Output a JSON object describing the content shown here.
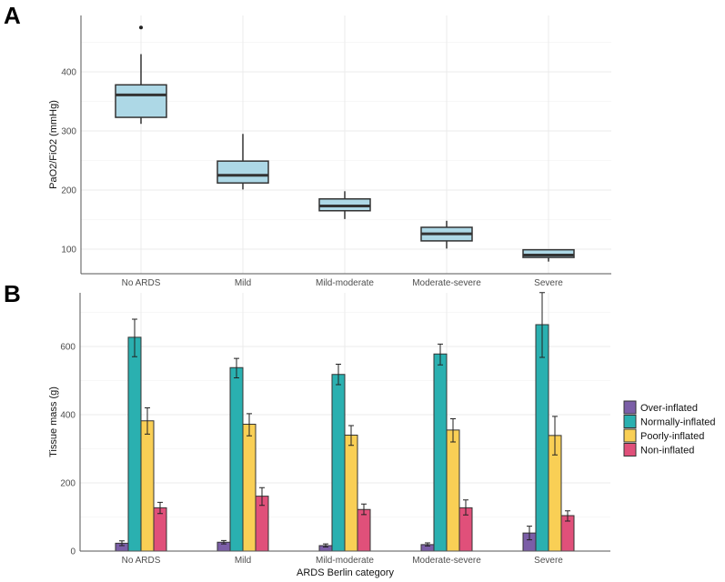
{
  "chart_data": [
    {
      "panel_label": "A",
      "type": "box",
      "categories": [
        "No ARDS",
        "Mild",
        "Mild-moderate",
        "Moderate-severe",
        "Severe"
      ],
      "xlabel": "",
      "ylabel": "PaO2/FiO2 (mmHg)",
      "ylim": [
        62,
        494
      ],
      "yticks": [
        100,
        200,
        300,
        400
      ],
      "grid": true,
      "fill_color": "#add8e6",
      "boxes": [
        {
          "whisker_low": 312,
          "q1": 323,
          "median": 361,
          "q3": 378,
          "whisker_high": 430,
          "outliers": [
            475
          ]
        },
        {
          "whisker_low": 201,
          "q1": 212,
          "median": 225,
          "q3": 249,
          "whisker_high": 295,
          "outliers": []
        },
        {
          "whisker_low": 151,
          "q1": 165,
          "median": 173,
          "q3": 185,
          "whisker_high": 198,
          "outliers": []
        },
        {
          "whisker_low": 101,
          "q1": 114,
          "median": 126,
          "q3": 137,
          "whisker_high": 148,
          "outliers": []
        },
        {
          "whisker_low": 79,
          "q1": 86,
          "median": 90,
          "q3": 99,
          "whisker_high": 100,
          "outliers": []
        }
      ]
    },
    {
      "panel_label": "B",
      "type": "bar",
      "categories": [
        "No ARDS",
        "Mild",
        "Mild-moderate",
        "Moderate-severe",
        "Severe"
      ],
      "xlabel": "ARDS Berlin category",
      "ylabel": "Tissue mass (g)",
      "ylim": [
        0,
        757
      ],
      "yticks": [
        0,
        200,
        400,
        600
      ],
      "grid": true,
      "legend_placement": "right",
      "series": [
        {
          "name": "Over-inflated",
          "color": "#7b5ea7",
          "values": [
            23,
            26,
            16,
            19,
            53
          ],
          "err_low": [
            16,
            21,
            12,
            15,
            33
          ],
          "err_high": [
            30,
            31,
            21,
            24,
            73
          ]
        },
        {
          "name": "Normally-inflated",
          "color": "#2ab0b0",
          "values": [
            627,
            538,
            518,
            578,
            664
          ],
          "err_low": [
            570,
            508,
            488,
            546,
            568
          ],
          "err_high": [
            680,
            565,
            548,
            607,
            758
          ]
        },
        {
          "name": "Poorly-inflated",
          "color": "#f9cf55",
          "values": [
            382,
            372,
            340,
            355,
            339
          ],
          "err_low": [
            343,
            338,
            310,
            320,
            282
          ],
          "err_high": [
            420,
            403,
            368,
            388,
            395
          ]
        },
        {
          "name": "Non-inflated",
          "color": "#e0507a",
          "values": [
            127,
            161,
            122,
            127,
            104
          ],
          "err_low": [
            110,
            134,
            107,
            106,
            88
          ],
          "err_high": [
            143,
            186,
            138,
            150,
            118
          ]
        }
      ]
    }
  ]
}
